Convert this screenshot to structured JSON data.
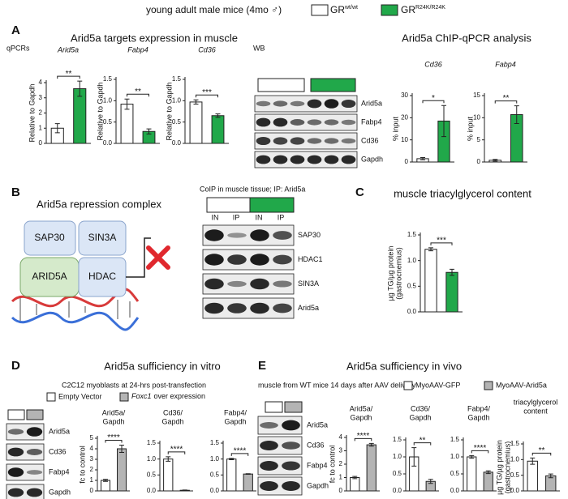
{
  "header": {
    "title": "young adult male mice (4mo ♂)",
    "legend": [
      {
        "label": "GR",
        "sup": "wt/wt",
        "color": "#ffffff"
      },
      {
        "label": "GR",
        "sup": "R24K/R24K",
        "color": "#21a84a"
      }
    ]
  },
  "panels": {
    "A": {
      "letter": "A",
      "title": "Arid5a targets expression in muscle",
      "chip_title": "Arid5a ChIP-qPCR analysis",
      "qpcr_label": "qPCRs",
      "wb_label": "WB",
      "wb_rows": [
        "Arid5a",
        "Fabp4",
        "Cd36",
        "Gapdh"
      ]
    },
    "B": {
      "letter": "B",
      "title": "Arid5a repression complex",
      "proteins": [
        "SAP30",
        "SIN3A",
        "ARID5A",
        "HDAC"
      ],
      "coip_title": "CoIP in muscle tissue; IP: Arid5a",
      "lanes": [
        "IN",
        "IP",
        "IN",
        "IP"
      ],
      "wb_rows": [
        "SAP30",
        "HDAC1",
        "SIN3A",
        "Arid5a"
      ]
    },
    "C": {
      "letter": "C"
    },
    "D": {
      "letter": "D",
      "title": "Arid5a sufficiency in vitro",
      "subtitle": "C2C12 myoblasts at 24-hrs post-transfection",
      "legend": [
        "Empty Vector",
        "Foxc1",
        "over expression"
      ],
      "wb_rows": [
        "Arid5a",
        "Cd36",
        "Fabp4",
        "Gapdh"
      ]
    },
    "E": {
      "letter": "E",
      "title": "Arid5a sufficiency in vivo",
      "subtitle": "muscle from WT mice 14 days after AAV delivery",
      "legend": [
        "MyoAAV-GFP",
        "MyoAAV-Arid5a"
      ],
      "wb_rows": [
        "Arid5a",
        "Cd36",
        "Fabp4",
        "Gapdh"
      ]
    }
  },
  "chart_data": [
    {
      "type": "bar",
      "title": "Arid5a",
      "ylabel": "Relative to Gapdh",
      "values": [
        1.0,
        3.6
      ],
      "errors": [
        0.3,
        0.5
      ],
      "colors": [
        "#ffffff",
        "#21a84a"
      ],
      "significance": "**",
      "ylim": [
        0,
        4
      ],
      "yticks": [
        0,
        1,
        2,
        3,
        4
      ]
    },
    {
      "type": "bar",
      "title": "Fabp4",
      "ylabel": "Relative to Gapdh",
      "values": [
        0.92,
        0.28
      ],
      "errors": [
        0.12,
        0.06
      ],
      "colors": [
        "#ffffff",
        "#21a84a"
      ],
      "significance": "**",
      "ylim": [
        0,
        1.5
      ],
      "yticks": [
        {
          "value": 0,
          "label": "0.0"
        },
        0.5,
        {
          "value": 1,
          "label": "1.0"
        },
        1.5
      ]
    },
    {
      "type": "bar",
      "title": "Cd36",
      "ylabel": "Relative to Gapdh",
      "values": [
        0.97,
        0.65
      ],
      "errors": [
        0.05,
        0.04
      ],
      "colors": [
        "#ffffff",
        "#21a84a"
      ],
      "significance": "***",
      "ylim": [
        0,
        1.5
      ],
      "yticks": [
        {
          "value": 0,
          "label": "0.0"
        },
        0.5,
        {
          "value": 1,
          "label": "1.0"
        },
        1.5
      ]
    },
    {
      "type": "bar",
      "title": "Cd36",
      "ylabel": "% input",
      "values": [
        1.5,
        18.5
      ],
      "errors": [
        0.5,
        7
      ],
      "colors": [
        "#ffffff",
        "#21a84a"
      ],
      "significance": "*",
      "ylim": [
        0,
        30
      ],
      "yticks": [
        0,
        10,
        20,
        30
      ]
    },
    {
      "type": "bar",
      "title": "Fabp4",
      "ylabel": "% input",
      "values": [
        0.4,
        10.7
      ],
      "errors": [
        0.2,
        2
      ],
      "colors": [
        "#ffffff",
        "#21a84a"
      ],
      "significance": "**",
      "ylim": [
        0,
        15
      ],
      "yticks": [
        0,
        5,
        10,
        15
      ]
    },
    {
      "type": "bar",
      "title": "muscle triacylglycerol content",
      "ylabel": [
        "µg TG/µg protein",
        "(gastrocnemius)"
      ],
      "values": [
        1.22,
        0.77
      ],
      "errors": [
        0.03,
        0.06
      ],
      "colors": [
        "#ffffff",
        "#21a84a"
      ],
      "significance": "***",
      "ylim": [
        0,
        1.5
      ],
      "yticks": [
        {
          "value": 0,
          "label": "0.0"
        },
        0.5,
        {
          "value": 1,
          "label": "1.0"
        },
        1.5
      ]
    },
    {
      "type": "bar",
      "title": [
        "Arid5a/",
        "Gapdh"
      ],
      "ylabel": "fc to control",
      "values": [
        1.0,
        4.0
      ],
      "errors": [
        0.1,
        0.35
      ],
      "colors": [
        "#ffffff",
        "#b4b4b4"
      ],
      "significance": "****",
      "ylim": [
        0,
        5
      ],
      "yticks": [
        0,
        1,
        2,
        3,
        4,
        5
      ]
    },
    {
      "type": "bar",
      "title": [
        "Cd36/",
        "Gapdh"
      ],
      "values": [
        1.0,
        0.02
      ],
      "errors": [
        0.07,
        0.01
      ],
      "colors": [
        "#ffffff",
        "#b4b4b4"
      ],
      "significance": "****",
      "ylim": [
        0,
        1.5
      ],
      "yticks": [
        {
          "value": 0,
          "label": "0.0"
        },
        0.5,
        {
          "value": 1,
          "label": "1.0"
        },
        1.5
      ]
    },
    {
      "type": "bar",
      "title": [
        "Fabp4/",
        "Gapdh"
      ],
      "values": [
        1.0,
        0.53
      ],
      "errors": [
        0.02,
        0.01
      ],
      "colors": [
        "#ffffff",
        "#b4b4b4"
      ],
      "significance": "****",
      "ylim": [
        0,
        1.5
      ],
      "yticks": [
        {
          "value": 0,
          "label": "0.0"
        },
        0.5,
        {
          "value": 1,
          "label": "1.0"
        },
        1.5
      ]
    },
    {
      "type": "bar",
      "title": [
        "Arid5a/",
        "Gapdh"
      ],
      "ylabel": "fc to control",
      "values": [
        1.0,
        3.45
      ],
      "errors": [
        0.08,
        0.1
      ],
      "colors": [
        "#ffffff",
        "#b4b4b4"
      ],
      "significance": "****",
      "ylim": [
        0,
        4
      ],
      "yticks": [
        0,
        1,
        2,
        3,
        4
      ]
    },
    {
      "type": "bar",
      "title": [
        "Cd36/",
        "Gapdh"
      ],
      "values": [
        1.0,
        0.28
      ],
      "errors": [
        0.27,
        0.06
      ],
      "colors": [
        "#ffffff",
        "#b4b4b4"
      ],
      "significance": "**",
      "ylim": [
        0,
        1.5
      ],
      "yticks": [
        {
          "value": 0,
          "label": "0.0"
        },
        0.5,
        {
          "value": 1,
          "label": "1.0"
        },
        1.5
      ]
    },
    {
      "type": "bar",
      "title": [
        "Fabp4/",
        "Gapdh"
      ],
      "values": [
        1.0,
        0.55
      ],
      "errors": [
        0.04,
        0.04
      ],
      "colors": [
        "#ffffff",
        "#b4b4b4"
      ],
      "significance": "****",
      "ylim": [
        0,
        1.5
      ],
      "yticks": [
        {
          "value": 0,
          "label": "0.0"
        },
        0.5,
        {
          "value": 1,
          "label": "1.0"
        },
        1.5
      ]
    },
    {
      "type": "bar",
      "title": [
        "triacylglycerol",
        "content"
      ],
      "ylabel": [
        "µg TG/µg protein",
        "(gastrocnemius)"
      ],
      "values": [
        0.95,
        0.48
      ],
      "errors": [
        0.1,
        0.06
      ],
      "colors": [
        "#ffffff",
        "#b4b4b4"
      ],
      "significance": "**",
      "ylim": [
        0,
        1.5
      ],
      "yticks": [
        {
          "value": 0,
          "label": "0.0"
        },
        0.5,
        {
          "value": 1,
          "label": "1.0"
        },
        1.5
      ]
    }
  ]
}
